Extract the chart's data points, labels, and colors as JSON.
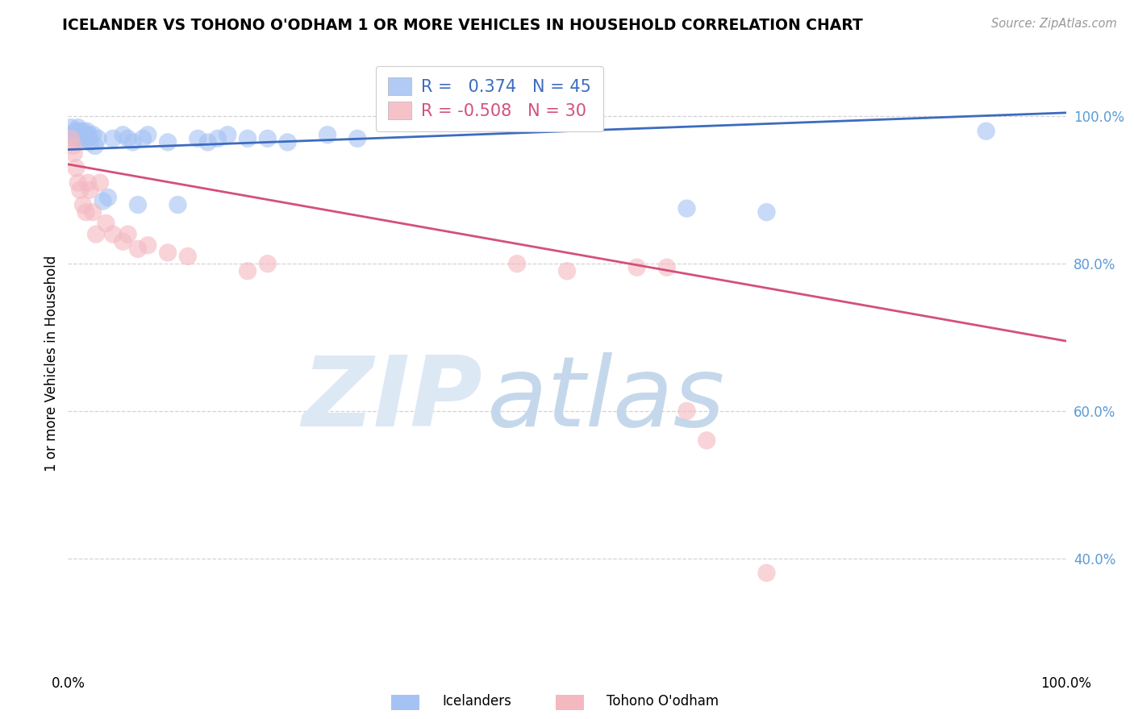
{
  "title": "ICELANDER VS TOHONO O'ODHAM 1 OR MORE VEHICLES IN HOUSEHOLD CORRELATION CHART",
  "source": "Source: ZipAtlas.com",
  "ylabel": "1 or more Vehicles in Household",
  "xlim": [
    0.0,
    1.0
  ],
  "ylim": [
    0.25,
    1.08
  ],
  "blue_R": 0.374,
  "blue_N": 45,
  "pink_R": -0.508,
  "pink_N": 30,
  "blue_color": "#a4c2f4",
  "pink_color": "#f4b8c1",
  "blue_line_color": "#3d6bbf",
  "pink_line_color": "#d4507a",
  "blue_scatter": [
    [
      0.003,
      0.985
    ],
    [
      0.005,
      0.975
    ],
    [
      0.006,
      0.97
    ],
    [
      0.007,
      0.98
    ],
    [
      0.008,
      0.975
    ],
    [
      0.009,
      0.97
    ],
    [
      0.01,
      0.985
    ],
    [
      0.011,
      0.975
    ],
    [
      0.012,
      0.98
    ],
    [
      0.013,
      0.97
    ],
    [
      0.014,
      0.975
    ],
    [
      0.015,
      0.98
    ],
    [
      0.016,
      0.975
    ],
    [
      0.017,
      0.97
    ],
    [
      0.018,
      0.975
    ],
    [
      0.019,
      0.98
    ],
    [
      0.02,
      0.97
    ],
    [
      0.021,
      0.975
    ],
    [
      0.022,
      0.965
    ],
    [
      0.025,
      0.975
    ],
    [
      0.027,
      0.96
    ],
    [
      0.03,
      0.97
    ],
    [
      0.035,
      0.885
    ],
    [
      0.04,
      0.89
    ],
    [
      0.045,
      0.97
    ],
    [
      0.055,
      0.975
    ],
    [
      0.06,
      0.97
    ],
    [
      0.065,
      0.965
    ],
    [
      0.07,
      0.88
    ],
    [
      0.075,
      0.97
    ],
    [
      0.08,
      0.975
    ],
    [
      0.1,
      0.965
    ],
    [
      0.11,
      0.88
    ],
    [
      0.13,
      0.97
    ],
    [
      0.14,
      0.965
    ],
    [
      0.15,
      0.97
    ],
    [
      0.16,
      0.975
    ],
    [
      0.18,
      0.97
    ],
    [
      0.2,
      0.97
    ],
    [
      0.22,
      0.965
    ],
    [
      0.26,
      0.975
    ],
    [
      0.29,
      0.97
    ],
    [
      0.62,
      0.875
    ],
    [
      0.7,
      0.87
    ],
    [
      0.92,
      0.98
    ]
  ],
  "pink_scatter": [
    [
      0.003,
      0.97
    ],
    [
      0.005,
      0.96
    ],
    [
      0.006,
      0.95
    ],
    [
      0.008,
      0.93
    ],
    [
      0.01,
      0.91
    ],
    [
      0.012,
      0.9
    ],
    [
      0.015,
      0.88
    ],
    [
      0.018,
      0.87
    ],
    [
      0.02,
      0.91
    ],
    [
      0.022,
      0.9
    ],
    [
      0.025,
      0.87
    ],
    [
      0.028,
      0.84
    ],
    [
      0.032,
      0.91
    ],
    [
      0.038,
      0.855
    ],
    [
      0.045,
      0.84
    ],
    [
      0.055,
      0.83
    ],
    [
      0.06,
      0.84
    ],
    [
      0.07,
      0.82
    ],
    [
      0.08,
      0.825
    ],
    [
      0.1,
      0.815
    ],
    [
      0.12,
      0.81
    ],
    [
      0.18,
      0.79
    ],
    [
      0.2,
      0.8
    ],
    [
      0.45,
      0.8
    ],
    [
      0.5,
      0.79
    ],
    [
      0.57,
      0.795
    ],
    [
      0.6,
      0.795
    ],
    [
      0.62,
      0.6
    ],
    [
      0.64,
      0.56
    ],
    [
      0.7,
      0.38
    ]
  ],
  "grid_color": "#c8c8c8",
  "watermark_zip": "ZIP",
  "watermark_atlas": "atlas",
  "watermark_color_zip": "#d8e4f0",
  "watermark_color_atlas": "#c8d8e8",
  "ytick_labels": [
    "40.0%",
    "60.0%",
    "80.0%",
    "100.0%"
  ],
  "ytick_values": [
    0.4,
    0.6,
    0.8,
    1.0
  ],
  "xtick_values": [
    0.0,
    0.2,
    0.4,
    0.6,
    0.8,
    1.0
  ],
  "xtick_labels": [
    "0.0%",
    "",
    "",
    "",
    "",
    "100.0%"
  ],
  "background_color": "#ffffff"
}
